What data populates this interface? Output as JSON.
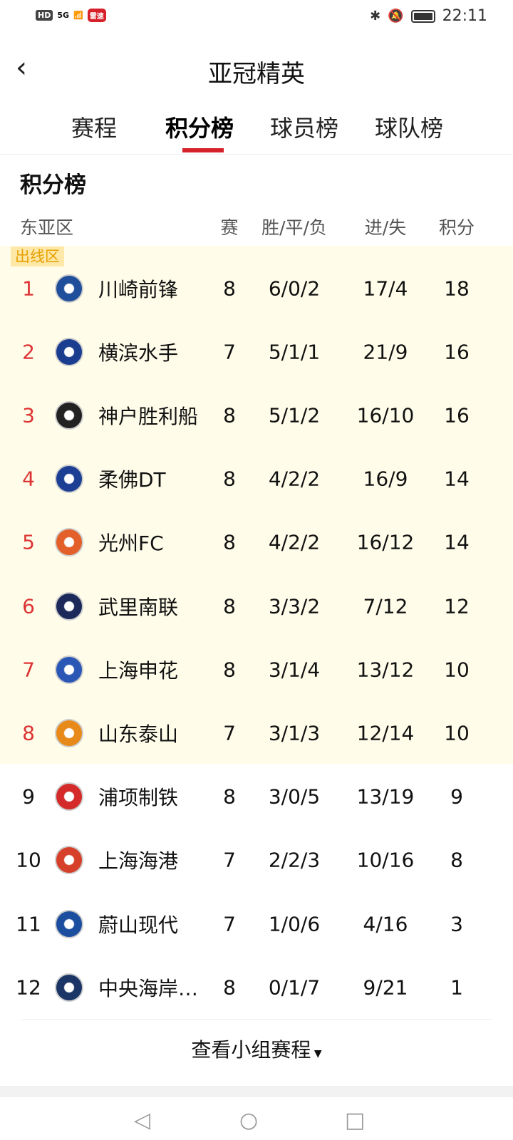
{
  "status": {
    "time": "22:11",
    "badge": "HD",
    "network": "5G",
    "app_badge": "雷速"
  },
  "header": {
    "title": "亚冠精英"
  },
  "tabs": [
    {
      "label": "赛程"
    },
    {
      "label": "积分榜",
      "active": true
    },
    {
      "label": "球员榜"
    },
    {
      "label": "球队榜"
    }
  ],
  "section": {
    "title": "积分榜",
    "region": "东亚区",
    "zone_label": "出线区"
  },
  "columns": {
    "played": "赛",
    "wdl": "胜/平/负",
    "goals": "进/失",
    "points": "积分"
  },
  "accent": "#d6202a",
  "rows": [
    {
      "rank": "1",
      "team": "川崎前锋",
      "played": "8",
      "wdl": "6/0/2",
      "goals": "17/4",
      "points": "18",
      "color": "#1f4e9a"
    },
    {
      "rank": "2",
      "team": "横滨水手",
      "played": "7",
      "wdl": "5/1/1",
      "goals": "21/9",
      "points": "16",
      "color": "#1a3d8f"
    },
    {
      "rank": "3",
      "team": "神户胜利船",
      "played": "8",
      "wdl": "5/1/2",
      "goals": "16/10",
      "points": "16",
      "color": "#222222"
    },
    {
      "rank": "4",
      "team": "柔佛DT",
      "played": "8",
      "wdl": "4/2/2",
      "goals": "16/9",
      "points": "14",
      "color": "#1c3f94"
    },
    {
      "rank": "5",
      "team": "光州FC",
      "played": "8",
      "wdl": "4/2/2",
      "goals": "16/12",
      "points": "14",
      "color": "#e3602a"
    },
    {
      "rank": "6",
      "team": "武里南联",
      "played": "8",
      "wdl": "3/3/2",
      "goals": "7/12",
      "points": "12",
      "color": "#1b2a5a"
    },
    {
      "rank": "7",
      "team": "上海申花",
      "played": "8",
      "wdl": "3/1/4",
      "goals": "13/12",
      "points": "10",
      "color": "#2a56b5"
    },
    {
      "rank": "8",
      "team": "山东泰山",
      "played": "7",
      "wdl": "3/1/3",
      "goals": "12/14",
      "points": "10",
      "color": "#e88a1a"
    },
    {
      "rank": "9",
      "team": "浦项制铁",
      "played": "8",
      "wdl": "3/0/5",
      "goals": "13/19",
      "points": "9",
      "color": "#d42a2a"
    },
    {
      "rank": "10",
      "team": "上海海港",
      "played": "7",
      "wdl": "2/2/3",
      "goals": "10/16",
      "points": "8",
      "color": "#d6402a"
    },
    {
      "rank": "11",
      "team": "蔚山现代",
      "played": "7",
      "wdl": "1/0/6",
      "goals": "4/16",
      "points": "3",
      "color": "#1c4ea0"
    },
    {
      "rank": "12",
      "team": "中央海岸…",
      "played": "8",
      "wdl": "0/1/7",
      "goals": "9/21",
      "points": "1",
      "color": "#1a3566"
    }
  ],
  "footer": {
    "more_label": "查看小组赛程"
  }
}
